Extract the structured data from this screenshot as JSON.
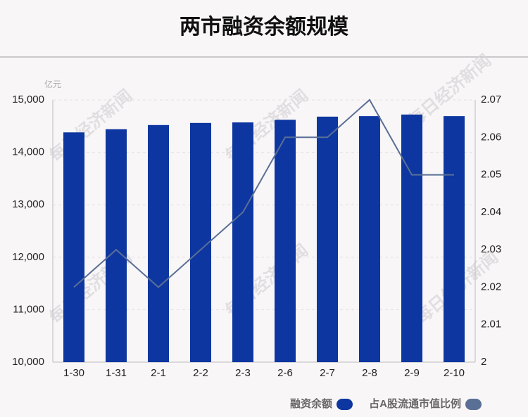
{
  "chart_data": {
    "type": "bar_line",
    "title": "两市融资余额规模",
    "y_unit": "亿元",
    "watermark": "每日经济新闻",
    "categories": [
      "1-30",
      "1-31",
      "2-1",
      "2-2",
      "2-3",
      "2-6",
      "2-7",
      "2-8",
      "2-9",
      "2-10"
    ],
    "series": [
      {
        "name": "融资余额",
        "type": "bar",
        "color": "#0d36a0",
        "values": [
          14380,
          14440,
          14520,
          14560,
          14570,
          14620,
          14680,
          14690,
          14720,
          14690
        ]
      },
      {
        "name": "占A股流通市值比例",
        "type": "line",
        "color": "#5a6f96",
        "axis": "y2",
        "values": [
          2.02,
          2.03,
          2.02,
          2.03,
          2.04,
          2.06,
          2.06,
          2.07,
          2.05,
          2.05
        ]
      }
    ],
    "ylim": [
      10000,
      15000
    ],
    "yticks": [
      {
        "value": 10000,
        "label": "10,000"
      },
      {
        "value": 11000,
        "label": "11,000"
      },
      {
        "value": 12000,
        "label": "12,000"
      },
      {
        "value": 13000,
        "label": "13,000"
      },
      {
        "value": 14000,
        "label": "14,000"
      },
      {
        "value": 15000,
        "label": "15,000"
      }
    ],
    "y2lim": [
      2,
      2.07
    ],
    "y2ticks": [
      2,
      2.01,
      2.02,
      2.03,
      2.04,
      2.05,
      2.06,
      2.07
    ],
    "grid": true,
    "legend": "bottom-right"
  }
}
